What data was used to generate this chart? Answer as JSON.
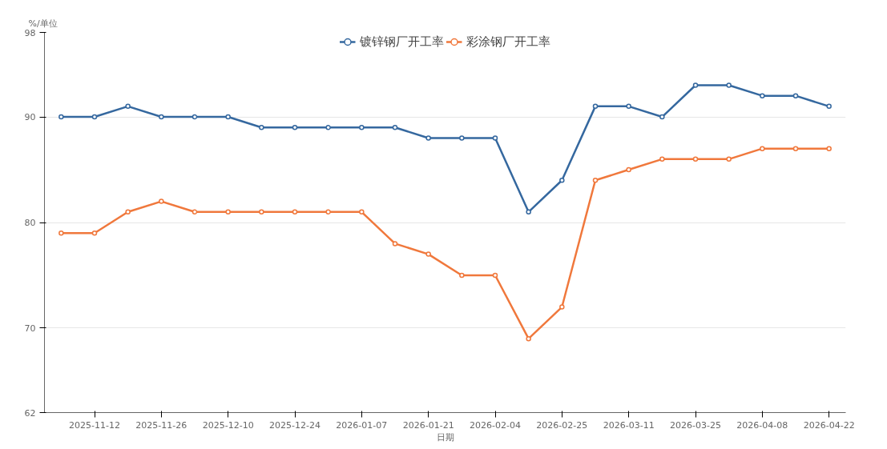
{
  "chart_data": {
    "type": "line",
    "ylabel": "%/单位",
    "xlabel": "日期",
    "categories": [
      null,
      "2025-11-12",
      null,
      "2025-11-26",
      null,
      "2025-12-10",
      null,
      "2025-12-24",
      null,
      "2026-01-07",
      null,
      "2026-01-21",
      null,
      "2026-02-04",
      null,
      "2026-02-25",
      null,
      "2026-03-11",
      null,
      "2026-03-25",
      null,
      "2026-04-08",
      null,
      "2026-04-22"
    ],
    "series": [
      {
        "name": "镀锌钢厂开工率",
        "color": "#35689f",
        "values": [
          90,
          90,
          91,
          90,
          90,
          90,
          89,
          89,
          89,
          89,
          89,
          88,
          88,
          88,
          81,
          84,
          91,
          91,
          90,
          93,
          93,
          92,
          92,
          91
        ]
      },
      {
        "name": "彩涂钢厂开工率",
        "color": "#f0783c",
        "values": [
          79,
          79,
          81,
          82,
          81,
          81,
          81,
          81,
          81,
          81,
          78,
          77,
          75,
          75,
          69,
          72,
          84,
          85,
          86,
          86,
          86,
          87,
          87,
          87
        ]
      }
    ],
    "ylim": [
      62,
      98
    ],
    "yticks": [
      62,
      70,
      80,
      90,
      98
    ],
    "grid": "y",
    "legend": "top",
    "marker": "circle",
    "line_style": "solid"
  }
}
